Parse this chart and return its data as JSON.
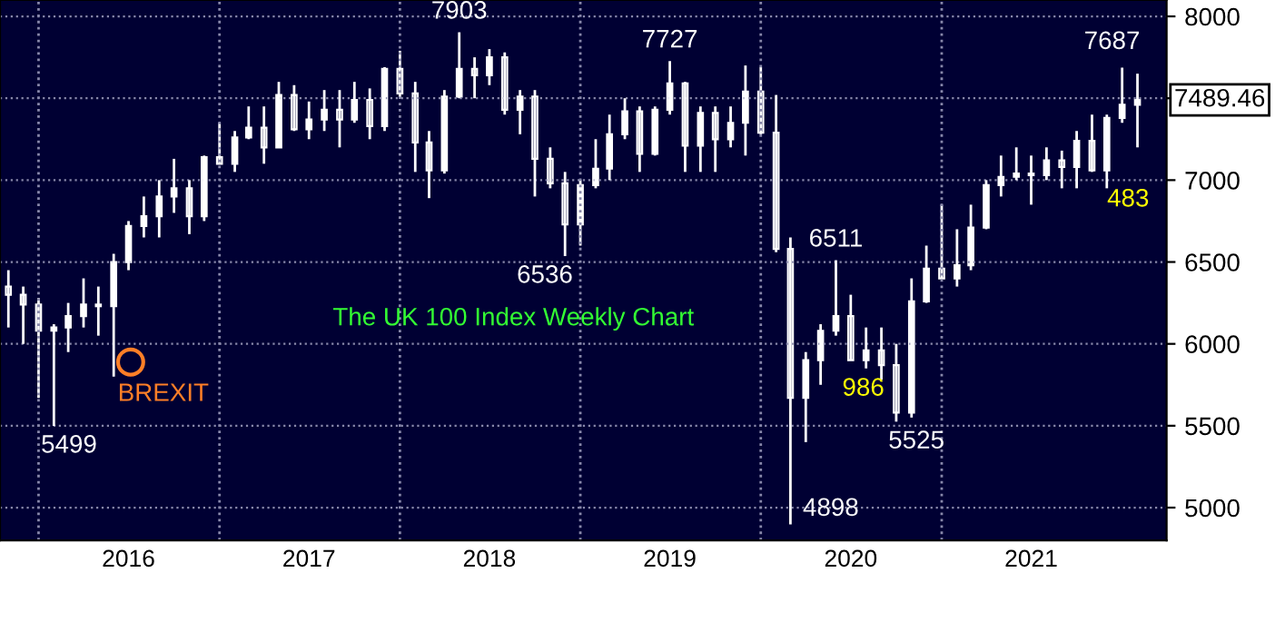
{
  "chart_data": {
    "type": "candlestick",
    "title": "The UK 100 Index Weekly Chart",
    "x": [
      "2015-11",
      "2015-12",
      "2016-01",
      "2016-02",
      "2016-03",
      "2016-04",
      "2016-05",
      "2016-06",
      "2016-07",
      "2016-08",
      "2016-09",
      "2016-10",
      "2016-11",
      "2016-12",
      "2017-01",
      "2017-02",
      "2017-03",
      "2017-04",
      "2017-05",
      "2017-06",
      "2017-07",
      "2017-08",
      "2017-09",
      "2017-10",
      "2017-11",
      "2017-12",
      "2018-01",
      "2018-02",
      "2018-03",
      "2018-04",
      "2018-05",
      "2018-06",
      "2018-07",
      "2018-08",
      "2018-09",
      "2018-10",
      "2018-11",
      "2018-12",
      "2019-01",
      "2019-02",
      "2019-03",
      "2019-04",
      "2019-05",
      "2019-06",
      "2019-07",
      "2019-08",
      "2019-09",
      "2019-10",
      "2019-11",
      "2019-12",
      "2020-01",
      "2020-02",
      "2020-03",
      "2020-04",
      "2020-05",
      "2020-06",
      "2020-07",
      "2020-08",
      "2020-09",
      "2020-10",
      "2020-11",
      "2020-12",
      "2021-01",
      "2021-02",
      "2021-03",
      "2021-04",
      "2021-05",
      "2021-06",
      "2021-07",
      "2021-08",
      "2021-09",
      "2021-10",
      "2021-11",
      "2021-12",
      "2022-01",
      "2022-02"
    ],
    "ohlc": [
      [
        6350,
        6450,
        6100,
        6300
      ],
      [
        6300,
        6350,
        6000,
        6240
      ],
      [
        6240,
        6280,
        5670,
        6080
      ],
      [
        6080,
        6120,
        5499,
        6100
      ],
      [
        6100,
        6250,
        5950,
        6170
      ],
      [
        6170,
        6400,
        6100,
        6240
      ],
      [
        6240,
        6350,
        6050,
        6230
      ],
      [
        6230,
        6550,
        5800,
        6500
      ],
      [
        6500,
        6750,
        6450,
        6720
      ],
      [
        6720,
        6900,
        6650,
        6780
      ],
      [
        6780,
        7000,
        6650,
        6900
      ],
      [
        6900,
        7130,
        6800,
        6950
      ],
      [
        6950,
        7000,
        6670,
        6780
      ],
      [
        6780,
        7150,
        6750,
        7140
      ],
      [
        7140,
        7350,
        7100,
        7100
      ],
      [
        7100,
        7300,
        7050,
        7260
      ],
      [
        7260,
        7450,
        7250,
        7320
      ],
      [
        7320,
        7450,
        7100,
        7200
      ],
      [
        7200,
        7600,
        7200,
        7520
      ],
      [
        7520,
        7580,
        7300,
        7310
      ],
      [
        7310,
        7480,
        7250,
        7370
      ],
      [
        7370,
        7550,
        7300,
        7430
      ],
      [
        7430,
        7550,
        7200,
        7370
      ],
      [
        7370,
        7600,
        7350,
        7490
      ],
      [
        7490,
        7560,
        7250,
        7330
      ],
      [
        7330,
        7690,
        7300,
        7680
      ],
      [
        7680,
        7790,
        7500,
        7530
      ],
      [
        7530,
        7600,
        7050,
        7230
      ],
      [
        7230,
        7300,
        6890,
        7060
      ],
      [
        7060,
        7550,
        7040,
        7510
      ],
      [
        7510,
        7903,
        7500,
        7680
      ],
      [
        7680,
        7750,
        7500,
        7640
      ],
      [
        7640,
        7800,
        7580,
        7750
      ],
      [
        7750,
        7780,
        7400,
        7430
      ],
      [
        7430,
        7550,
        7280,
        7510
      ],
      [
        7510,
        7550,
        6900,
        7130
      ],
      [
        7130,
        7200,
        6950,
        6980
      ],
      [
        6980,
        7050,
        6536,
        6730
      ],
      [
        6730,
        7000,
        6600,
        6970
      ],
      [
        6970,
        7250,
        6950,
        7070
      ],
      [
        7070,
        7400,
        7000,
        7280
      ],
      [
        7280,
        7500,
        7250,
        7420
      ],
      [
        7420,
        7450,
        7050,
        7160
      ],
      [
        7160,
        7450,
        7150,
        7430
      ],
      [
        7430,
        7727,
        7400,
        7590
      ],
      [
        7590,
        7600,
        7050,
        7210
      ],
      [
        7210,
        7450,
        7050,
        7410
      ],
      [
        7410,
        7450,
        7050,
        7250
      ],
      [
        7250,
        7450,
        7200,
        7350
      ],
      [
        7350,
        7700,
        7150,
        7540
      ],
      [
        7540,
        7690,
        7280,
        7290
      ],
      [
        7290,
        7520,
        6560,
        6580
      ],
      [
        6580,
        6650,
        4898,
        5670
      ],
      [
        5670,
        5950,
        5400,
        5900
      ],
      [
        5900,
        6120,
        5750,
        6080
      ],
      [
        6080,
        6511,
        6050,
        6170
      ],
      [
        6170,
        6300,
        5900,
        5900
      ],
      [
        5900,
        6100,
        5850,
        5960
      ],
      [
        5960,
        6100,
        5780,
        5870
      ],
      [
        5870,
        6000,
        5525,
        5580
      ],
      [
        5580,
        6400,
        5550,
        6260
      ],
      [
        6260,
        6600,
        6250,
        6460
      ],
      [
        6460,
        6850,
        6400,
        6400
      ],
      [
        6400,
        6700,
        6350,
        6480
      ],
      [
        6480,
        6850,
        6450,
        6710
      ],
      [
        6710,
        7000,
        6700,
        6970
      ],
      [
        6970,
        7150,
        6900,
        7020
      ],
      [
        7020,
        7200,
        7000,
        7040
      ],
      [
        7040,
        7150,
        6850,
        7030
      ],
      [
        7030,
        7200,
        7000,
        7120
      ],
      [
        7120,
        7180,
        6950,
        7080
      ],
      [
        7080,
        7300,
        6950,
        7240
      ],
      [
        7240,
        7400,
        7050,
        7060
      ],
      [
        7060,
        7400,
        6950,
        7380
      ],
      [
        7380,
        7687,
        7350,
        7460
      ],
      [
        7460,
        7650,
        7200,
        7489.46
      ]
    ],
    "color": "#ffffff",
    "xlim": [
      "2015-10-15",
      "2022-04-01"
    ],
    "xticks": [
      {
        "value": "2016-07-01",
        "label": "2016"
      },
      {
        "value": "2017-07-01",
        "label": "2017"
      },
      {
        "value": "2018-07-01",
        "label": "2018"
      },
      {
        "value": "2019-07-01",
        "label": "2019"
      },
      {
        "value": "2020-07-01",
        "label": "2020"
      },
      {
        "value": "2021-07-01",
        "label": "2021"
      }
    ],
    "ylim": [
      4800,
      8100
    ],
    "yticks": [
      5000,
      5500,
      6000,
      6500,
      7000,
      {
        "value": 7500,
        "label": null
      },
      8000
    ],
    "grid": "y",
    "ref_lines": [
      {
        "axis": "x",
        "value": "2016-01-01",
        "line_style": "dotted",
        "color": "#8888aa"
      },
      {
        "axis": "x",
        "value": "2017-01-01",
        "line_style": "dotted",
        "color": "#8888aa"
      },
      {
        "axis": "x",
        "value": "2018-01-01",
        "line_style": "dotted",
        "color": "#8888aa"
      },
      {
        "axis": "x",
        "value": "2019-01-01",
        "line_style": "dotted",
        "color": "#8888aa"
      },
      {
        "axis": "x",
        "value": "2020-01-01",
        "line_style": "dotted",
        "color": "#8888aa"
      },
      {
        "axis": "x",
        "value": "2021-01-01",
        "line_style": "dotted",
        "color": "#8888aa"
      }
    ],
    "annotations": [
      {
        "text": "7903",
        "x": "2018-05",
        "y": 7903
      },
      {
        "text": "7727",
        "x": "2019-07",
        "y": 7727
      },
      {
        "text": "7687",
        "x": "2022-01",
        "y": 7687
      },
      {
        "text": "6536",
        "x": "2018-12",
        "y": 6536
      },
      {
        "text": "6511",
        "x": "2020-06",
        "y": 6511
      },
      {
        "text": "5499",
        "x": "2016-02",
        "y": 5499
      },
      {
        "text": "4898",
        "x": "2020-03",
        "y": 4898
      },
      {
        "text": "5525",
        "x": "2020-10",
        "y": 5525
      },
      "986",
      "483",
      "BREXIT",
      "7489.46"
    ]
  }
}
